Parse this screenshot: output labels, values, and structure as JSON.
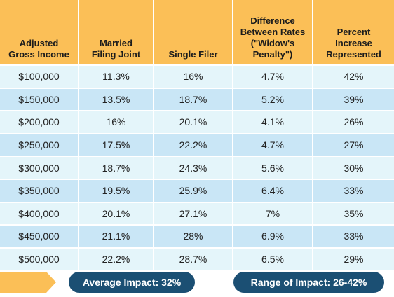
{
  "table": {
    "headers": [
      [
        "Adjusted",
        "Gross Income"
      ],
      [
        "Married",
        "Filing Joint"
      ],
      [
        "Single Filer"
      ],
      [
        "Difference",
        "Between Rates",
        "(\"Widow's",
        "Penalty\")"
      ],
      [
        "Percent",
        "Increase",
        "Represented"
      ]
    ],
    "rows": [
      [
        "$100,000",
        "11.3%",
        "16%",
        "4.7%",
        "42%"
      ],
      [
        "$150,000",
        "13.5%",
        "18.7%",
        "5.2%",
        "39%"
      ],
      [
        "$200,000",
        "16%",
        "20.1%",
        "4.1%",
        "26%"
      ],
      [
        "$250,000",
        "17.5%",
        "22.2%",
        "4.7%",
        "27%"
      ],
      [
        "$300,000",
        "18.7%",
        "24.3%",
        "5.6%",
        "30%"
      ],
      [
        "$350,000",
        "19.5%",
        "25.9%",
        "6.4%",
        "33%"
      ],
      [
        "$400,000",
        "20.1%",
        "27.1%",
        "7%",
        "35%"
      ],
      [
        "$450,000",
        "21.1%",
        "28%",
        "6.9%",
        "33%"
      ],
      [
        "$500,000",
        "22.2%",
        "28.7%",
        "6.5%",
        "29%"
      ]
    ]
  },
  "summary": {
    "average": "Average Impact: 32%",
    "range": "Range of Impact: 26-42%"
  },
  "colors": {
    "header_bg": "#fbbf57",
    "row_light": "#e4f5fa",
    "row_dark": "#c9e6f6",
    "pill_bg": "#1b4f73"
  }
}
